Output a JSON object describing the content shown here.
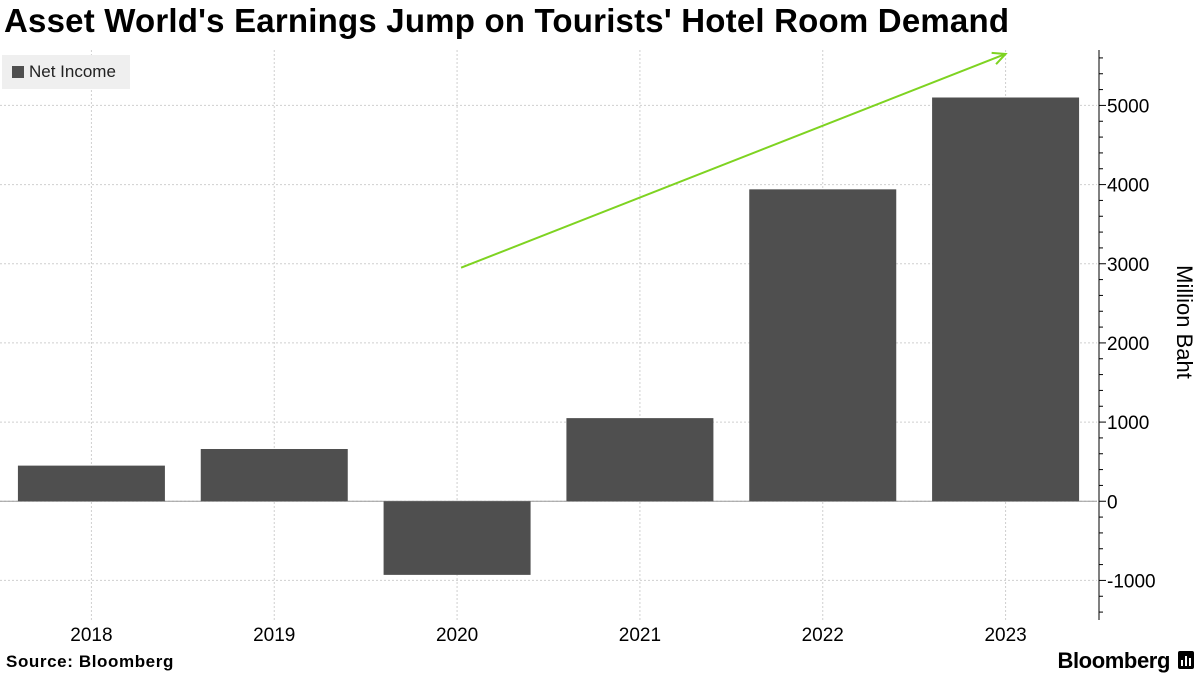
{
  "source_label": "Source: Bloomberg",
  "brand": "Bloomberg",
  "chart_data": {
    "type": "bar",
    "title": "Asset World's Earnings Jump on Tourists' Hotel Room Demand",
    "categories": [
      "2018",
      "2019",
      "2020",
      "2021",
      "2022",
      "2023"
    ],
    "series": [
      {
        "name": "Net Income",
        "values": [
          450,
          660,
          -930,
          1050,
          3940,
          5100
        ],
        "color": "#4f4f4f"
      }
    ],
    "ylabel": "Million Baht",
    "xlabel": "",
    "ylim": [
      -1500,
      5700
    ],
    "yticks": [
      -1000,
      0,
      1000,
      2000,
      3000,
      4000,
      5000
    ],
    "ytick_labels": [
      "-1000",
      "0",
      "1000",
      "2000",
      "3000",
      "4000",
      "5000"
    ],
    "grid": true,
    "legend_position": "top-left",
    "annotation": {
      "type": "arrow",
      "color": "#7ed321",
      "from": {
        "x": "2020",
        "y": 2950
      },
      "to": {
        "x": "2023",
        "y": 5650
      }
    }
  }
}
